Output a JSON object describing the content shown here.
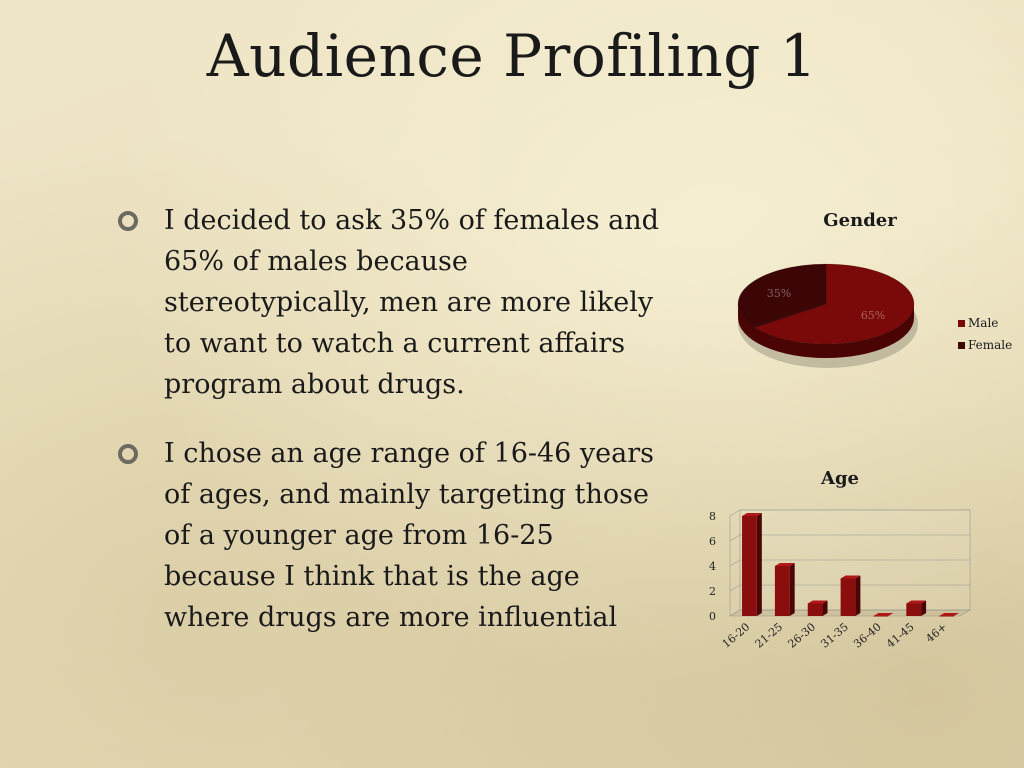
{
  "slide": {
    "title": "Audience Profiling 1",
    "bullets": [
      "I decided to ask 35% of females and 65% of males because stereotypically, men are more likely to want to watch a current affairs program about drugs.",
      "I chose an age range of 16-46 years of ages, and mainly targeting those of a younger age from 16-25 because I think that is the age where drugs are more influential"
    ]
  },
  "chart_data": [
    {
      "type": "pie",
      "title": "Gender",
      "categories": [
        "Male",
        "Female"
      ],
      "values": [
        65,
        35
      ],
      "data_labels": [
        "65%",
        "35%"
      ],
      "colors": [
        "#7a0a0a",
        "#3d0606"
      ],
      "legend": "right"
    },
    {
      "type": "bar",
      "title": "Age",
      "categories": [
        "16-20",
        "21-25",
        "26-30",
        "31-35",
        "36-40",
        "41-45",
        "46+"
      ],
      "values": [
        8,
        4,
        1,
        3,
        0,
        1,
        0
      ],
      "ylim": [
        0,
        8
      ],
      "yticks": [
        "0",
        "2",
        "4",
        "6",
        "8"
      ],
      "grid": true,
      "colors": [
        "#8b0e0e"
      ]
    }
  ]
}
